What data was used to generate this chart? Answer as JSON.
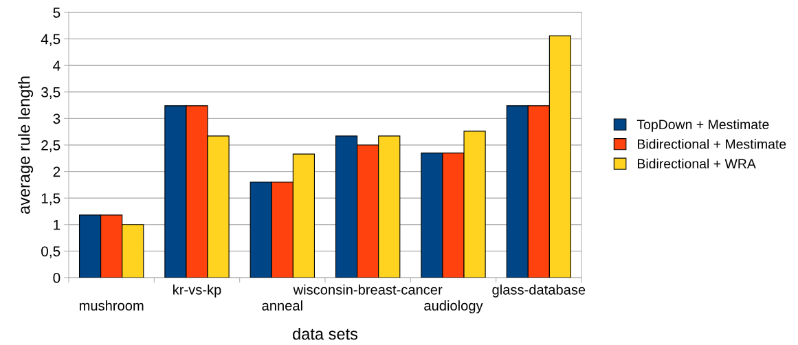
{
  "chart_data": {
    "type": "bar",
    "xlabel": "data sets",
    "ylabel": "average rule length",
    "categories": [
      "mushroom",
      "kr-vs-kp",
      "anneal",
      "wisconsin-breast-cancer",
      "audiology",
      "glass-database"
    ],
    "series": [
      {
        "name": "TopDown + Mestimate",
        "color": "#004586",
        "values": [
          1.18,
          3.24,
          1.8,
          2.67,
          2.35,
          3.24
        ]
      },
      {
        "name": "Bidirectional + Mestimate",
        "color": "#ff420e",
        "values": [
          1.18,
          3.24,
          1.8,
          2.5,
          2.35,
          3.24
        ]
      },
      {
        "name": "Bidirectional + WRA",
        "color": "#ffd320",
        "values": [
          1.0,
          2.67,
          2.33,
          2.67,
          2.76,
          4.56
        ]
      }
    ],
    "ylim": [
      0,
      5
    ],
    "yticks": [
      0,
      {
        "value": 0.5,
        "label": "0,5"
      },
      1,
      {
        "value": 1.5,
        "label": "1,5"
      },
      2,
      {
        "value": 2.5,
        "label": "2,5"
      },
      3,
      {
        "value": 3.5,
        "label": "3,5"
      },
      4,
      {
        "value": 4.5,
        "label": "4,5"
      },
      5
    ],
    "grid": "y",
    "legend": "right"
  }
}
